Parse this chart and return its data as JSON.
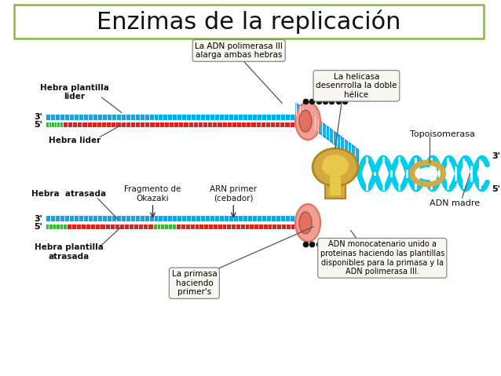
{
  "title": "Enzimas de la replicación",
  "title_fontsize": 22,
  "title_border_color": "#8db53a",
  "bg_color": "#ffffff",
  "labels": {
    "hebra_plantilla_lider": "Hebra plantilla\nlider",
    "hebra_lider": "Hebra lider",
    "hebra_atrasada": "Hebra  atrasada",
    "hebra_plantilla_atrasada": "Hebra plantilla\natrasada",
    "fragmento_okazaki": "Fragmento de\nOkazaki",
    "arn_primer": "ARN primer\n(cebador)",
    "primasa": "La primasa\nhaciendo\nprimer's",
    "adn_polimerasa": "La ADN polimerasa III\nalarga ambas hebras",
    "helicasa": "La helicasa\ndesenrrolla la doble\nhélice",
    "topoisomerasa": "Topoisomerasa",
    "adn_madre": "ADN madre",
    "adn_monocatenario": "ADN monocatenario unido a\nproteinas haciendo las plantillas\ndisponibles para la primasa y la\nADN polimerasa III.",
    "three_prime_top": "3'",
    "five_prime_top": "5'",
    "three_prime_bottom": "3'",
    "five_prime_bottom": "5'",
    "three_prime_right": "3'",
    "five_prime_right": "5'"
  },
  "colors": {
    "blue_strand": "#00aaee",
    "red_strand": "#dd2222",
    "green_strand": "#33bb33",
    "salmon_ellipse": "#f0a090",
    "dark_salmon": "#e07060",
    "gold_enzyme": "#d4aa40",
    "black_dots": "#111111",
    "text_color": "#111111",
    "box_bg": "#f8f8f0",
    "box_border": "#888888",
    "white": "#ffffff",
    "helix_cyan": "#00ccee"
  },
  "figure_size": [
    6.38,
    4.79
  ],
  "dpi": 100
}
